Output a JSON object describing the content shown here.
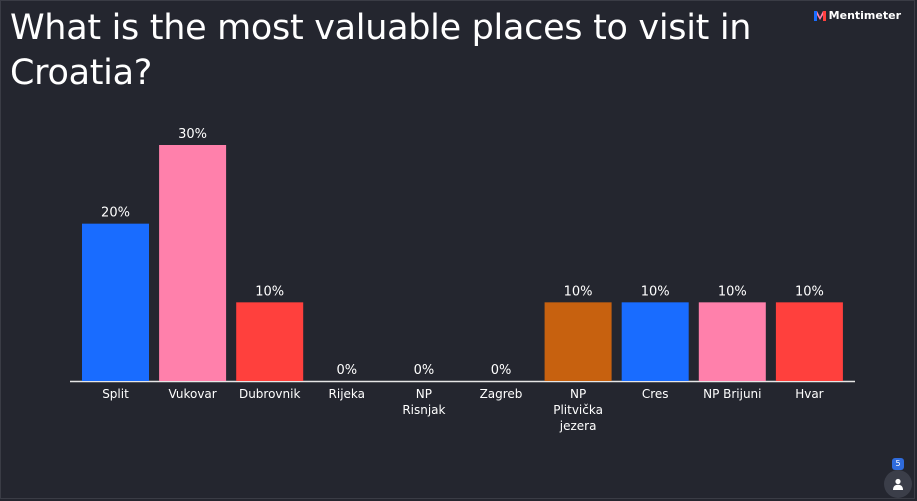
{
  "title": "What is the most valuable places to visit in Croatia?",
  "brand": "Mentimeter",
  "participants": "5",
  "icons": {
    "brand": "mentimeter-logo-icon",
    "participants": "user-icon"
  },
  "chart_data": {
    "type": "bar",
    "title": "What is the most valuable places to visit in Croatia?",
    "categories": [
      "Split",
      "Vukovar",
      "Dubrovnik",
      "Rijeka",
      "NP Risnjak",
      "Zagreb",
      "NP Plitvička jezera",
      "Cres",
      "NP Brijuni",
      "Hvar"
    ],
    "values": [
      20,
      30,
      10,
      0,
      0,
      0,
      10,
      10,
      10,
      10
    ],
    "value_labels": [
      "20%",
      "30%",
      "10%",
      "0%",
      "0%",
      "0%",
      "10%",
      "10%",
      "10%",
      "10%"
    ],
    "label_lines": [
      [
        "Split"
      ],
      [
        "Vukovar"
      ],
      [
        "Dubrovnik"
      ],
      [
        "Rijeka"
      ],
      [
        "NP",
        "Risnjak"
      ],
      [
        "Zagreb"
      ],
      [
        "NP",
        "Plitvička",
        "jezera"
      ],
      [
        "Cres"
      ],
      [
        "NP Brijuni"
      ],
      [
        "Hvar"
      ]
    ],
    "colors": [
      "#196cff",
      "#ff80ab",
      "#ff403d",
      "#ff403d",
      "#ff403d",
      "#ff403d",
      "#c7610f",
      "#196cff",
      "#ff80ab",
      "#ff403d"
    ],
    "value_unit": "%",
    "ylim": [
      0,
      30
    ],
    "grid": false,
    "xlabel": "",
    "ylabel": ""
  }
}
